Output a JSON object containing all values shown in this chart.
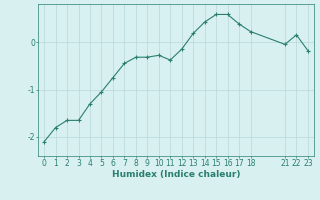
{
  "x": [
    0,
    1,
    2,
    3,
    4,
    5,
    6,
    7,
    8,
    9,
    10,
    11,
    12,
    13,
    14,
    15,
    16,
    17,
    18,
    21,
    22,
    23
  ],
  "y": [
    -2.1,
    -1.8,
    -1.65,
    -1.65,
    -1.3,
    -1.05,
    -0.75,
    -0.45,
    -0.32,
    -0.32,
    -0.28,
    -0.38,
    -0.15,
    0.18,
    0.42,
    0.58,
    0.58,
    0.38,
    0.22,
    -0.05,
    0.15,
    -0.18
  ],
  "line_color": "#2a7f6e",
  "marker": "+",
  "marker_size": 3,
  "marker_edge_width": 0.8,
  "line_width": 0.8,
  "bg_color": "#d8f0f0",
  "grid_color": "#b8d8d8",
  "xlabel": "Humidex (Indice chaleur)",
  "xticks": [
    0,
    1,
    2,
    3,
    4,
    5,
    6,
    7,
    8,
    9,
    10,
    11,
    12,
    13,
    14,
    15,
    16,
    17,
    18,
    21,
    22,
    23
  ],
  "yticks": [
    -2,
    -1,
    0
  ],
  "xlim": [
    -0.5,
    23.5
  ],
  "ylim": [
    -2.4,
    0.8
  ],
  "tick_fontsize": 5.5,
  "label_fontsize": 6.5
}
